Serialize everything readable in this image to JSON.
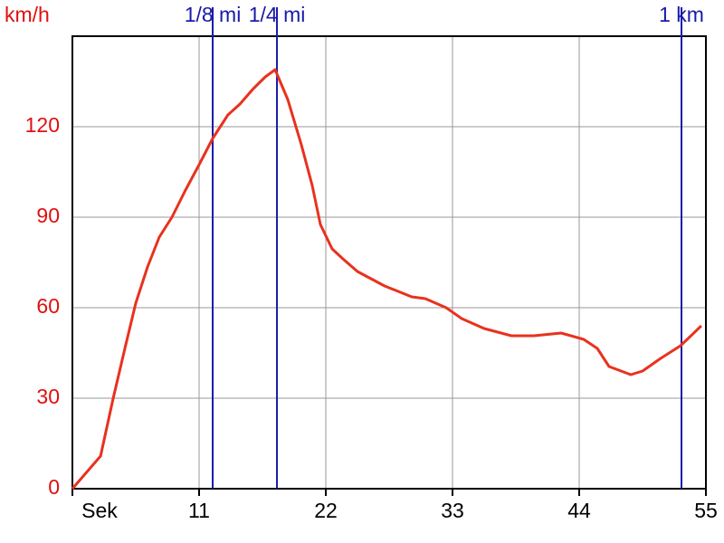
{
  "chart_data": {
    "type": "line",
    "y_label": "km/h",
    "x": [
      0,
      2.44,
      3.54,
      4.56,
      5.5,
      6.52,
      7.54,
      8.64,
      9.82,
      11,
      12.18,
      13.5,
      14.54,
      15.71,
      16.74,
      17.6,
      18.7,
      19.88,
      20.82,
      21.53,
      22.55,
      23.57,
      24.75,
      25.93,
      27.11,
      28.29,
      29.46,
      30.64,
      32.45,
      33.79,
      35.75,
      38.11,
      40.07,
      42.43,
      44.39,
      45.57,
      46.59,
      48.48,
      49.5,
      51.07,
      52.8,
      54.6
    ],
    "values": [
      0,
      10.8,
      30,
      46.5,
      61.5,
      73.5,
      83.4,
      90,
      99,
      107.4,
      116.1,
      123.9,
      127.5,
      132.6,
      136.5,
      138.9,
      129,
      114,
      100.5,
      87.6,
      79.5,
      75.9,
      72,
      69.6,
      67.2,
      65.4,
      63.6,
      63,
      60,
      56.4,
      53.1,
      50.7,
      50.7,
      51.6,
      49.5,
      46.5,
      40.5,
      37.8,
      39,
      43.2,
      47.4,
      54
    ],
    "color": "#e8321e",
    "xlim": [
      0,
      55
    ],
    "xticks": [
      {
        "value": 0,
        "label": "Sek"
      },
      11,
      22,
      33,
      44,
      55
    ],
    "ylim": [
      0,
      150
    ],
    "yticks": [
      0,
      30,
      60,
      90,
      120
    ],
    "grid": true,
    "markers": [
      {
        "label": "1/8 mi",
        "x": 12.18
      },
      {
        "label": "1/4 mi",
        "x": 17.76
      },
      {
        "label": "1 km",
        "x": 52.88
      }
    ],
    "marker_color": "#1a1aa8"
  }
}
